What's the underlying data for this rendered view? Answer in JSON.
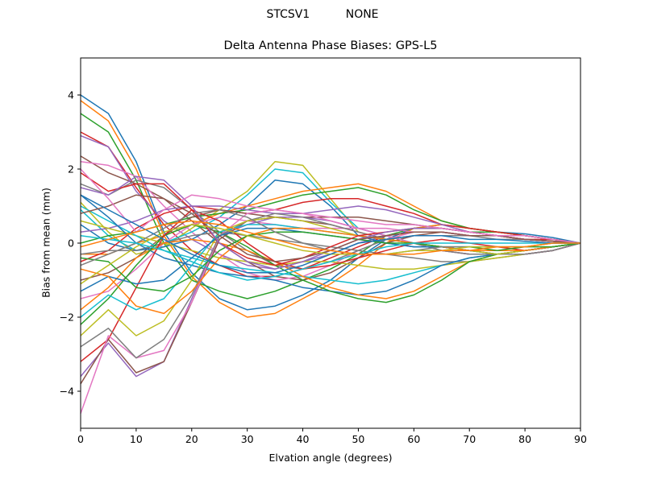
{
  "suptitle": "STCSV1          NONE",
  "chart_data": {
    "type": "line",
    "title": "Delta Antenna Phase Biases: GPS-L5",
    "xlabel": "Elvation angle (degrees)",
    "ylabel": "Bias from mean (mm)",
    "xlim": [
      0,
      90
    ],
    "ylim": [
      -5,
      5
    ],
    "xticks": [
      "0",
      "10",
      "20",
      "30",
      "40",
      "50",
      "60",
      "70",
      "80",
      "90"
    ],
    "yticks": [
      "−4",
      "−2",
      "0",
      "2",
      "4"
    ],
    "grid": false,
    "legend": "none",
    "x": [
      0,
      5,
      10,
      15,
      20,
      25,
      30,
      35,
      40,
      45,
      50,
      55,
      60,
      65,
      70,
      75,
      80,
      85,
      90
    ],
    "colors": [
      "#1f77b4",
      "#ff7f0e",
      "#2ca02c",
      "#d62728",
      "#9467bd",
      "#8c564b",
      "#e377c2",
      "#7f7f7f",
      "#bcbd22",
      "#17becf"
    ],
    "series": [
      {
        "values": [
          4.0,
          3.5,
          2.2,
          0.3,
          -0.8,
          -1.5,
          -1.8,
          -1.7,
          -1.4,
          -1.0,
          -0.4,
          0.1,
          0.4,
          0.5,
          0.4,
          0.3,
          0.25,
          0.15,
          0.0
        ]
      },
      {
        "values": [
          3.85,
          3.3,
          2.0,
          0.2,
          -0.9,
          -1.6,
          -2.0,
          -1.9,
          -1.5,
          -1.1,
          -0.6,
          0.0,
          0.4,
          0.5,
          0.4,
          0.3,
          0.2,
          0.1,
          0.0
        ]
      },
      {
        "values": [
          3.5,
          3.0,
          1.7,
          0.0,
          -1.0,
          -1.3,
          -1.5,
          -1.3,
          -1.0,
          -0.7,
          -0.3,
          0.2,
          0.4,
          0.4,
          0.3,
          0.3,
          0.2,
          0.1,
          0.0
        ]
      },
      {
        "values": [
          3.0,
          2.6,
          1.5,
          0.5,
          -0.2,
          -0.6,
          -0.9,
          -0.9,
          -0.7,
          -0.4,
          -0.1,
          0.2,
          0.3,
          0.3,
          0.2,
          0.2,
          0.1,
          0.1,
          0.0
        ]
      },
      {
        "values": [
          2.9,
          2.6,
          1.4,
          0.6,
          0.1,
          -0.3,
          -0.6,
          -0.7,
          -0.5,
          -0.3,
          0.0,
          0.2,
          0.3,
          0.3,
          0.2,
          0.2,
          0.1,
          0.05,
          0.0
        ]
      },
      {
        "values": [
          2.35,
          1.9,
          1.6,
          1.2,
          0.6,
          0.0,
          -0.5,
          -0.9,
          -1.0,
          -0.8,
          -0.4,
          0.0,
          0.2,
          0.3,
          0.2,
          0.2,
          0.1,
          0.05,
          0.0
        ]
      },
      {
        "values": [
          2.2,
          2.1,
          1.8,
          1.0,
          0.3,
          -0.3,
          -0.8,
          -1.0,
          -0.9,
          -0.6,
          -0.2,
          0.1,
          0.3,
          0.3,
          0.2,
          0.2,
          0.1,
          0.05,
          0.0
        ]
      },
      {
        "values": [
          1.6,
          1.3,
          1.7,
          1.5,
          0.9,
          0.3,
          -0.2,
          -0.6,
          -0.7,
          -0.5,
          -0.2,
          0.1,
          0.2,
          0.2,
          0.2,
          0.1,
          0.1,
          0.05,
          0.0
        ]
      },
      {
        "values": [
          1.1,
          0.3,
          -0.3,
          -0.1,
          0.4,
          0.9,
          1.4,
          2.2,
          2.1,
          1.2,
          0.3,
          0.1,
          0.0,
          -0.1,
          -0.2,
          -0.3,
          -0.3,
          -0.2,
          0.0
        ]
      },
      {
        "values": [
          0.9,
          0.2,
          -0.2,
          0.0,
          0.3,
          0.7,
          1.3,
          2.0,
          1.9,
          1.1,
          0.4,
          0.2,
          0.0,
          -0.1,
          -0.2,
          -0.3,
          -0.3,
          -0.2,
          0.0
        ]
      },
      {
        "values": [
          0.5,
          0.0,
          -0.2,
          -0.1,
          0.1,
          0.5,
          1.0,
          1.7,
          1.6,
          1.0,
          0.2,
          0.0,
          -0.1,
          -0.1,
          -0.2,
          -0.3,
          -0.3,
          -0.2,
          0.0
        ]
      },
      {
        "values": [
          -0.3,
          -0.3,
          0.0,
          0.2,
          0.5,
          0.8,
          1.0,
          1.2,
          1.4,
          1.5,
          1.6,
          1.4,
          1.0,
          0.6,
          0.4,
          0.3,
          0.2,
          0.1,
          0.0
        ]
      },
      {
        "values": [
          0.0,
          0.2,
          0.3,
          0.5,
          0.7,
          0.8,
          0.9,
          1.1,
          1.3,
          1.4,
          1.5,
          1.3,
          0.9,
          0.6,
          0.4,
          0.3,
          0.2,
          0.1,
          0.0
        ]
      },
      {
        "values": [
          -0.5,
          -0.2,
          0.4,
          0.8,
          1.0,
          0.9,
          0.8,
          0.9,
          1.1,
          1.2,
          1.2,
          1.0,
          0.8,
          0.5,
          0.4,
          0.3,
          0.2,
          0.1,
          0.0
        ]
      },
      {
        "values": [
          0.3,
          0.4,
          0.6,
          0.9,
          1.0,
          1.0,
          0.9,
          0.8,
          0.8,
          0.9,
          1.0,
          0.9,
          0.7,
          0.5,
          0.3,
          0.2,
          0.2,
          0.1,
          0.0
        ]
      },
      {
        "values": [
          -1.0,
          -0.8,
          -0.4,
          0.2,
          0.7,
          0.9,
          0.8,
          0.7,
          0.7,
          0.7,
          0.7,
          0.6,
          0.5,
          0.4,
          0.3,
          0.2,
          0.1,
          0.05,
          0.0
        ]
      },
      {
        "values": [
          -1.5,
          -1.3,
          -0.7,
          0.0,
          0.5,
          0.7,
          0.6,
          0.5,
          0.4,
          0.4,
          0.4,
          0.4,
          0.3,
          0.3,
          0.2,
          0.2,
          0.1,
          0.05,
          0.0
        ]
      },
      {
        "values": [
          -0.3,
          -0.2,
          -0.2,
          0.0,
          0.2,
          0.3,
          0.2,
          0.1,
          0.0,
          -0.1,
          -0.2,
          -0.3,
          -0.4,
          -0.5,
          -0.5,
          -0.4,
          -0.3,
          -0.2,
          0.0
        ]
      },
      {
        "values": [
          0.6,
          0.4,
          0.2,
          0.0,
          -0.2,
          -0.4,
          -0.5,
          -0.6,
          -0.5,
          -0.5,
          -0.6,
          -0.7,
          -0.7,
          -0.6,
          -0.5,
          -0.4,
          -0.3,
          -0.2,
          0.0
        ]
      },
      {
        "values": [
          1.0,
          0.6,
          0.2,
          -0.2,
          -0.4,
          -0.6,
          -0.7,
          -0.8,
          -0.9,
          -1.0,
          -1.1,
          -1.0,
          -0.8,
          -0.6,
          -0.4,
          -0.3,
          -0.2,
          -0.1,
          0.0
        ]
      },
      {
        "values": [
          1.3,
          0.7,
          0.0,
          -0.4,
          -0.6,
          -0.8,
          -0.9,
          -1.0,
          -1.2,
          -1.3,
          -1.4,
          -1.3,
          -1.0,
          -0.6,
          -0.4,
          -0.3,
          -0.2,
          -0.1,
          0.0
        ]
      },
      {
        "values": [
          -1.8,
          -1.2,
          -0.4,
          0.0,
          0.1,
          0.0,
          -0.2,
          -0.5,
          -0.9,
          -1.2,
          -1.4,
          -1.5,
          -1.3,
          -0.9,
          -0.5,
          -0.3,
          -0.2,
          -0.1,
          0.0
        ]
      },
      {
        "values": [
          -2.2,
          -1.5,
          -0.6,
          0.2,
          0.5,
          0.3,
          -0.1,
          -0.6,
          -1.0,
          -1.3,
          -1.5,
          -1.6,
          -1.4,
          -1.0,
          -0.5,
          -0.3,
          -0.2,
          -0.1,
          0.0
        ]
      },
      {
        "values": [
          -3.2,
          -2.6,
          -1.2,
          0.2,
          0.9,
          0.6,
          0.0,
          -0.5,
          -0.7,
          -0.6,
          -0.4,
          -0.2,
          0.0,
          0.1,
          0.0,
          -0.1,
          -0.2,
          -0.1,
          0.0
        ]
      },
      {
        "values": [
          -3.6,
          -2.7,
          -3.6,
          -3.2,
          -1.5,
          0.2,
          0.5,
          0.7,
          0.7,
          0.6,
          0.4,
          0.2,
          0.0,
          -0.2,
          -0.3,
          -0.3,
          -0.3,
          -0.2,
          0.0
        ]
      },
      {
        "values": [
          -3.8,
          -2.6,
          -3.5,
          -3.2,
          -1.6,
          0.1,
          0.6,
          0.7,
          0.6,
          0.5,
          0.3,
          0.1,
          0.0,
          -0.2,
          -0.3,
          -0.3,
          -0.3,
          -0.2,
          0.0
        ]
      },
      {
        "values": [
          -4.6,
          -2.5,
          -3.1,
          -2.9,
          -1.6,
          0.2,
          0.8,
          0.9,
          0.8,
          0.6,
          0.4,
          0.2,
          0.0,
          -0.2,
          -0.3,
          -0.3,
          -0.3,
          -0.2,
          0.0
        ]
      },
      {
        "values": [
          -2.8,
          -2.3,
          -3.1,
          -2.6,
          -1.4,
          0.2,
          0.6,
          0.8,
          0.7,
          0.5,
          0.3,
          0.1,
          0.0,
          -0.2,
          -0.3,
          -0.3,
          -0.3,
          -0.2,
          0.0
        ]
      },
      {
        "values": [
          -2.5,
          -1.8,
          -2.5,
          -2.1,
          -1.0,
          0.3,
          0.6,
          0.7,
          0.6,
          0.4,
          0.2,
          0.1,
          0.0,
          -0.1,
          -0.2,
          -0.3,
          -0.2,
          -0.1,
          0.0
        ]
      },
      {
        "values": [
          -2.0,
          -1.4,
          -1.8,
          -1.5,
          -0.6,
          0.3,
          0.5,
          0.5,
          0.4,
          0.3,
          0.2,
          0.1,
          0.0,
          -0.1,
          -0.2,
          -0.2,
          -0.2,
          -0.1,
          0.0
        ]
      },
      {
        "values": [
          -1.3,
          -0.9,
          -1.1,
          -1.0,
          -0.4,
          0.2,
          0.4,
          0.4,
          0.3,
          0.2,
          0.1,
          0.0,
          -0.1,
          -0.1,
          -0.2,
          -0.2,
          -0.2,
          -0.1,
          0.0
        ]
      },
      {
        "values": [
          -0.7,
          -0.9,
          -1.7,
          -1.9,
          -1.3,
          -0.4,
          0.2,
          0.4,
          0.4,
          0.3,
          0.2,
          0.1,
          0.0,
          -0.1,
          -0.2,
          -0.2,
          -0.2,
          -0.1,
          0.0
        ]
      },
      {
        "values": [
          -0.4,
          -0.5,
          -1.2,
          -1.3,
          -0.9,
          -0.2,
          0.2,
          0.3,
          0.3,
          0.2,
          0.1,
          0.0,
          0.0,
          -0.1,
          -0.1,
          -0.2,
          -0.1,
          -0.1,
          0.0
        ]
      },
      {
        "values": [
          1.9,
          1.4,
          1.6,
          1.6,
          0.9,
          0.0,
          -0.4,
          -0.6,
          -0.4,
          -0.1,
          0.2,
          0.3,
          0.4,
          0.4,
          0.3,
          0.2,
          0.1,
          0.05,
          0.0
        ]
      },
      {
        "values": [
          1.5,
          1.3,
          1.8,
          1.7,
          1.0,
          0.0,
          -0.5,
          -0.7,
          -0.5,
          -0.2,
          0.1,
          0.3,
          0.4,
          0.4,
          0.3,
          0.2,
          0.1,
          0.05,
          0.0
        ]
      },
      {
        "values": [
          0.8,
          1.0,
          1.3,
          1.2,
          0.8,
          0.2,
          -0.3,
          -0.5,
          -0.4,
          -0.2,
          0.1,
          0.2,
          0.3,
          0.3,
          0.2,
          0.2,
          0.1,
          0.05,
          0.0
        ]
      },
      {
        "values": [
          2.0,
          1.2,
          0.3,
          0.9,
          1.3,
          1.2,
          1.0,
          0.9,
          0.8,
          0.7,
          0.6,
          0.5,
          0.5,
          0.4,
          0.3,
          0.2,
          0.2,
          0.1,
          0.0
        ]
      },
      {
        "values": [
          -0.6,
          -0.3,
          0.0,
          0.4,
          0.8,
          0.9,
          0.7,
          0.3,
          0.0,
          -0.2,
          -0.3,
          -0.3,
          -0.2,
          -0.1,
          -0.1,
          -0.1,
          -0.1,
          0.0,
          0.0
        ]
      },
      {
        "values": [
          -1.1,
          -0.6,
          -0.1,
          0.3,
          0.5,
          0.4,
          0.2,
          0.0,
          -0.2,
          -0.3,
          -0.3,
          -0.3,
          -0.2,
          -0.2,
          -0.1,
          -0.1,
          -0.1,
          0.0,
          0.0
        ]
      },
      {
        "values": [
          0.2,
          0.1,
          0.0,
          -0.2,
          -0.5,
          -0.8,
          -1.0,
          -0.9,
          -0.7,
          -0.5,
          -0.3,
          -0.1,
          0.0,
          0.0,
          0.0,
          0.0,
          0.0,
          0.0,
          0.0
        ]
      },
      {
        "values": [
          1.3,
          0.9,
          0.5,
          0.1,
          -0.3,
          -0.6,
          -0.8,
          -0.8,
          -0.6,
          -0.3,
          0.0,
          0.1,
          0.2,
          0.2,
          0.1,
          0.1,
          0.05,
          0.0,
          0.0
        ]
      },
      {
        "values": [
          -0.1,
          0.1,
          0.3,
          0.5,
          0.6,
          0.5,
          0.3,
          0.1,
          -0.1,
          -0.2,
          -0.3,
          -0.3,
          -0.3,
          -0.2,
          -0.2,
          -0.1,
          -0.1,
          0.0,
          0.0
        ]
      }
    ]
  }
}
